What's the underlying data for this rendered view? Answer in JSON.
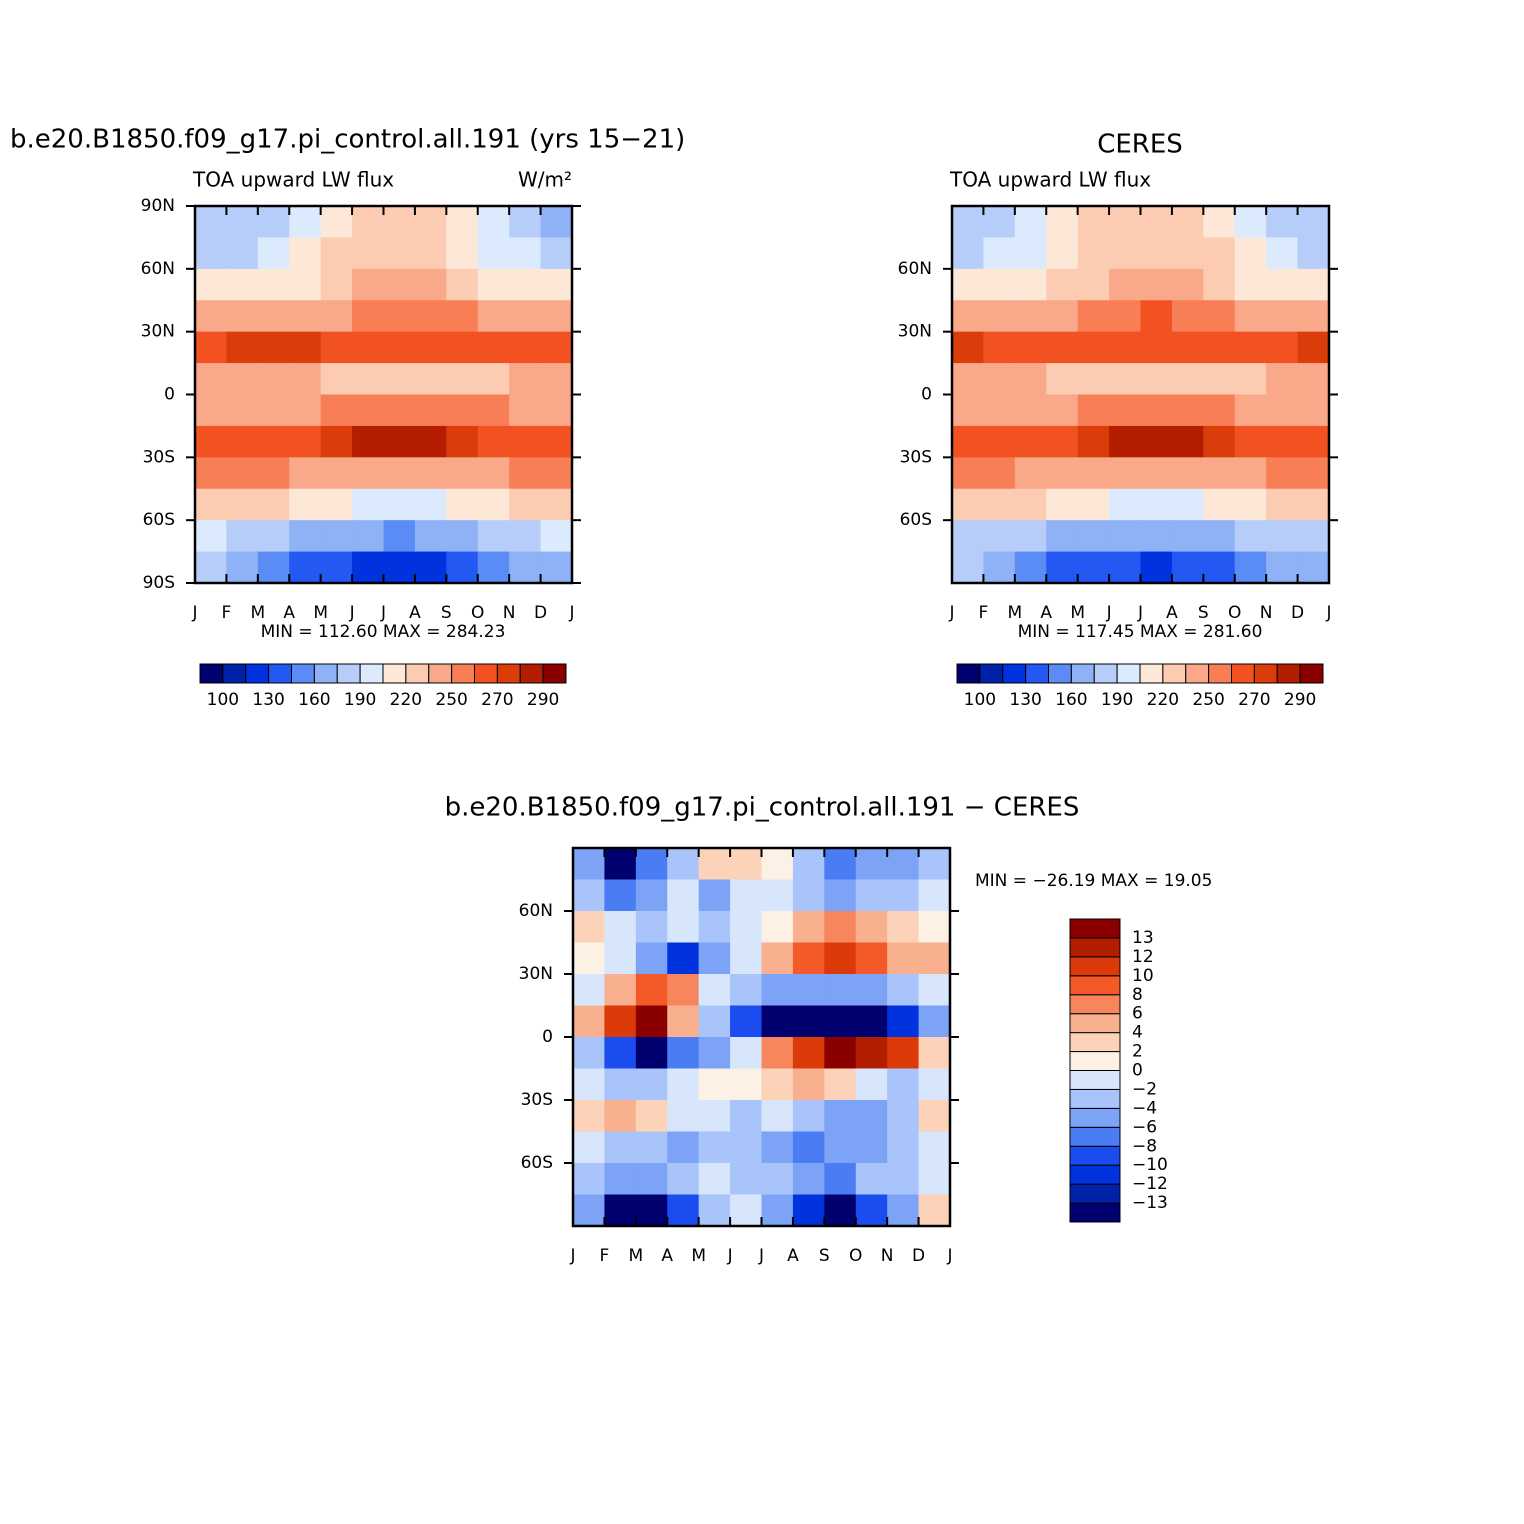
{
  "chart_data": [
    {
      "type": "contour",
      "title": "b.e20.B1850.f09_g17.pi_control.all.191 (yrs 15−21)",
      "subtitle_left": "TOA upward LW flux",
      "subtitle_right": "W/m²",
      "stats": "MIN =  112.60  MAX =  284.23",
      "xticks": [
        "J",
        "F",
        "M",
        "A",
        "M",
        "J",
        "J",
        "A",
        "S",
        "O",
        "N",
        "D",
        "J"
      ],
      "ylim": [
        90,
        -90
      ],
      "yticks": [
        {
          "value": 90,
          "label": "90N"
        },
        {
          "value": 60,
          "label": "60N"
        },
        {
          "value": 30,
          "label": "30N"
        },
        0,
        {
          "value": -30,
          "label": "30S"
        },
        {
          "value": -60,
          "label": "60S"
        },
        {
          "value": -90,
          "label": "90S"
        }
      ],
      "levels": [
        100,
        115,
        130,
        145,
        160,
        175,
        190,
        205,
        220,
        235,
        250,
        260,
        270,
        280,
        290
      ],
      "colorbar_ticks": [
        100,
        130,
        160,
        190,
        220,
        250,
        270,
        290
      ],
      "colors": [
        "#00006e",
        "#0022a8",
        "#0033dd",
        "#2458f2",
        "#5b8bf5",
        "#8fb1f6",
        "#b6cdfa",
        "#dbeafc",
        "#fde8d8",
        "#fcccb2",
        "#f9a98a",
        "#f77e55",
        "#f25222",
        "#da3c0a",
        "#b31e00",
        "#8a0000"
      ],
      "grid": [
        [
          175,
          175,
          180,
          195,
          215,
          225,
          230,
          225,
          210,
          190,
          175,
          172
        ],
        [
          185,
          185,
          190,
          205,
          220,
          230,
          232,
          230,
          215,
          200,
          190,
          185
        ],
        [
          205,
          205,
          208,
          215,
          225,
          235,
          238,
          235,
          225,
          215,
          208,
          205
        ],
        [
          235,
          235,
          238,
          242,
          248,
          255,
          258,
          256,
          250,
          243,
          238,
          236
        ],
        [
          268,
          272,
          275,
          272,
          266,
          262,
          262,
          262,
          264,
          266,
          268,
          268
        ],
        [
          245,
          240,
          238,
          236,
          232,
          225,
          222,
          222,
          225,
          230,
          236,
          242
        ],
        [
          238,
          240,
          242,
          245,
          250,
          255,
          258,
          258,
          255,
          250,
          244,
          240
        ],
        [
          262,
          262,
          264,
          268,
          275,
          282,
          283,
          282,
          276,
          268,
          264,
          262
        ],
        [
          252,
          252,
          250,
          248,
          246,
          244,
          244,
          244,
          246,
          248,
          250,
          252
        ],
        [
          225,
          225,
          222,
          215,
          208,
          200,
          198,
          200,
          205,
          212,
          220,
          225
        ],
        [
          190,
          188,
          180,
          172,
          165,
          160,
          158,
          160,
          165,
          175,
          185,
          190
        ],
        [
          175,
          160,
          145,
          135,
          130,
          128,
          125,
          128,
          132,
          145,
          160,
          172
        ]
      ]
    },
    {
      "type": "contour",
      "title": "CERES",
      "subtitle_left": "TOA upward LW flux",
      "stats": "MIN =  117.45  MAX =  281.60",
      "xticks": [
        "J",
        "F",
        "M",
        "A",
        "M",
        "J",
        "J",
        "A",
        "S",
        "O",
        "N",
        "D",
        "J"
      ],
      "ylim": [
        90,
        -90
      ],
      "yticks": [
        {
          "value": 60,
          "label": "60N"
        },
        {
          "value": 30,
          "label": "30N"
        },
        0,
        {
          "value": -30,
          "label": "30S"
        },
        {
          "value": -60,
          "label": "60S"
        }
      ],
      "levels": [
        100,
        115,
        130,
        145,
        160,
        175,
        190,
        205,
        220,
        235,
        250,
        260,
        270,
        280,
        290
      ],
      "colorbar_ticks": [
        100,
        130,
        160,
        190,
        220,
        250,
        270,
        290
      ],
      "colors": [
        "#00006e",
        "#0022a8",
        "#0033dd",
        "#2458f2",
        "#5b8bf5",
        "#8fb1f6",
        "#b6cdfa",
        "#dbeafc",
        "#fde8d8",
        "#fcccb2",
        "#f9a98a",
        "#f77e55",
        "#f25222",
        "#da3c0a",
        "#b31e00",
        "#8a0000"
      ],
      "grid": [
        [
          180,
          185,
          195,
          210,
          222,
          228,
          230,
          228,
          218,
          200,
          188,
          180
        ],
        [
          188,
          192,
          200,
          212,
          224,
          232,
          234,
          232,
          222,
          208,
          195,
          188
        ],
        [
          205,
          208,
          212,
          220,
          228,
          235,
          238,
          236,
          228,
          218,
          210,
          205
        ],
        [
          238,
          238,
          240,
          244,
          250,
          256,
          260,
          258,
          250,
          244,
          240,
          238
        ],
        [
          270,
          268,
          266,
          264,
          262,
          262,
          262,
          262,
          262,
          264,
          266,
          270
        ],
        [
          242,
          238,
          235,
          232,
          228,
          224,
          222,
          222,
          225,
          230,
          236,
          242
        ],
        [
          240,
          242,
          244,
          248,
          252,
          256,
          258,
          258,
          254,
          248,
          244,
          240
        ],
        [
          262,
          262,
          264,
          268,
          276,
          280,
          282,
          280,
          274,
          266,
          264,
          262
        ],
        [
          250,
          250,
          248,
          247,
          246,
          245,
          245,
          245,
          246,
          248,
          250,
          250
        ],
        [
          222,
          222,
          220,
          215,
          208,
          202,
          200,
          202,
          208,
          215,
          220,
          222
        ],
        [
          188,
          186,
          180,
          174,
          168,
          162,
          160,
          162,
          168,
          176,
          184,
          188
        ],
        [
          175,
          160,
          150,
          140,
          135,
          130,
          128,
          130,
          135,
          148,
          160,
          172
        ]
      ]
    },
    {
      "type": "contour",
      "title": "b.e20.B1850.f09_g17.pi_control.all.191 − CERES",
      "stats": "MIN = −26.19  MAX =   19.05",
      "xticks": [
        "J",
        "F",
        "M",
        "A",
        "M",
        "J",
        "J",
        "A",
        "S",
        "O",
        "N",
        "D",
        "J"
      ],
      "ylim": [
        90,
        -90
      ],
      "yticks": [
        {
          "value": 60,
          "label": "60N"
        },
        {
          "value": 30,
          "label": "30N"
        },
        0,
        {
          "value": -30,
          "label": "30S"
        },
        {
          "value": -60,
          "label": "60S"
        }
      ],
      "levels": [
        -13,
        -12,
        -10,
        -8,
        -6,
        -4,
        -2,
        0,
        2,
        4,
        6,
        8,
        10,
        12,
        13
      ],
      "colorbar_ticks": [
        {
          "value": -13,
          "label": "−13"
        },
        {
          "value": -12,
          "label": "−12"
        },
        {
          "value": -10,
          "label": "−10"
        },
        {
          "value": -8,
          "label": "−8"
        },
        {
          "value": -6,
          "label": "−6"
        },
        {
          "value": -4,
          "label": "−4"
        },
        {
          "value": -2,
          "label": "−2"
        },
        0,
        2,
        4,
        6,
        8,
        10,
        12,
        13
      ],
      "colors": [
        "#00006e",
        "#0022a8",
        "#0033dd",
        "#1b4cf0",
        "#4a7df4",
        "#7ca3f6",
        "#a9c4fa",
        "#d8e6fc",
        "#fdf0e4",
        "#fcd2b8",
        "#f9b08f",
        "#f7865c",
        "#f45a28",
        "#dc3a08",
        "#b31e00",
        "#8a0000"
      ],
      "grid": [
        [
          -6,
          -14,
          -8,
          -3,
          2,
          3,
          0,
          -4,
          -8,
          -6,
          -5,
          -3
        ],
        [
          -4,
          -8,
          -5,
          -2,
          -6,
          -2,
          -1,
          -3,
          -5,
          -4,
          -3,
          -2
        ],
        [
          2,
          -2,
          -3,
          -1,
          -4,
          -2,
          0,
          5,
          6,
          5,
          3,
          1
        ],
        [
          1,
          -2,
          -6,
          -12,
          -5,
          -1,
          4,
          9,
          11,
          8,
          5,
          4
        ],
        [
          -2,
          4,
          9,
          6,
          -2,
          -4,
          -5,
          -6,
          -6,
          -5,
          -4,
          -1
        ],
        [
          5,
          10,
          14,
          5,
          -3,
          -10,
          -14,
          -14,
          -14,
          -14,
          -12,
          -6
        ],
        [
          -4,
          -10,
          -14,
          -8,
          -6,
          -2,
          6,
          10,
          14,
          12,
          11,
          2
        ],
        [
          -2,
          -4,
          -3,
          -1,
          0,
          1,
          3,
          5,
          3,
          -1,
          -3,
          -1
        ],
        [
          3,
          5,
          2,
          -1,
          -2,
          -3,
          -2,
          -3,
          -6,
          -5,
          -3,
          3
        ],
        [
          -2,
          -3,
          -4,
          -5,
          -4,
          -3,
          -6,
          -8,
          -6,
          -5,
          -3,
          -2
        ],
        [
          -3,
          -6,
          -5,
          -4,
          -2,
          -3,
          -4,
          -6,
          -7,
          -4,
          -3,
          -1
        ],
        [
          -6,
          -14,
          -14,
          -10,
          -3,
          -1,
          -5,
          -12,
          -14,
          -10,
          -5,
          2
        ]
      ]
    }
  ]
}
